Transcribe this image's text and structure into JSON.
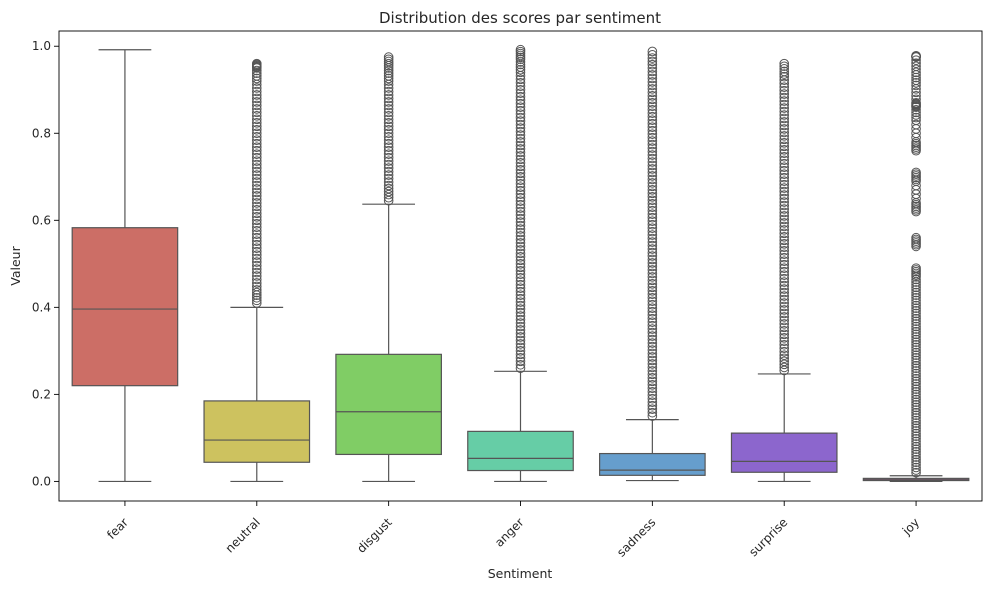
{
  "chart_data": {
    "type": "box",
    "title": "Distribution des scores par sentiment",
    "xlabel": "Sentiment",
    "ylabel": "Valeur",
    "ylim": [
      -0.045,
      1.035
    ],
    "yticks": [
      "0.0",
      "0.2",
      "0.4",
      "0.6",
      "0.8",
      "1.0"
    ],
    "ytick_values": [
      0.0,
      0.2,
      0.4,
      0.6,
      0.8,
      1.0
    ],
    "grid": false,
    "legend": "none",
    "categories": [
      "fear",
      "neutral",
      "disgust",
      "anger",
      "sadness",
      "surprise",
      "joy"
    ],
    "boxes": [
      {
        "category": "fear",
        "color": "#cc6e66",
        "whisker_low": 0.0,
        "q1": 0.22,
        "median": 0.396,
        "q3": 0.583,
        "whisker_high": 0.992,
        "outliers": []
      },
      {
        "category": "neutral",
        "color": "#cdc25f",
        "whisker_low": 0.0,
        "q1": 0.044,
        "median": 0.095,
        "q3": 0.185,
        "whisker_high": 0.4,
        "outliers": [
          0.41,
          0.44,
          0.48,
          0.52,
          0.56,
          0.6,
          0.64,
          0.68,
          0.72,
          0.76,
          0.8,
          0.84,
          0.88,
          0.92,
          0.95,
          0.96
        ]
      },
      {
        "category": "disgust",
        "color": "#80cd65",
        "whisker_low": 0.0,
        "q1": 0.062,
        "median": 0.16,
        "q3": 0.292,
        "whisker_high": 0.637,
        "outliers": [
          0.645,
          0.68,
          0.72,
          0.76,
          0.8,
          0.84,
          0.88,
          0.92,
          0.95,
          0.975
        ]
      },
      {
        "category": "anger",
        "color": "#66cda6",
        "whisker_low": 0.0,
        "q1": 0.025,
        "median": 0.053,
        "q3": 0.115,
        "whisker_high": 0.253,
        "outliers": [
          0.26,
          0.3,
          0.34,
          0.38,
          0.42,
          0.46,
          0.5,
          0.54,
          0.58,
          0.62,
          0.66,
          0.7,
          0.74,
          0.78,
          0.82,
          0.86,
          0.9,
          0.94,
          0.97,
          0.992
        ]
      },
      {
        "category": "sadness",
        "color": "#669ecd",
        "whisker_low": 0.002,
        "q1": 0.014,
        "median": 0.026,
        "q3": 0.064,
        "whisker_high": 0.142,
        "outliers": [
          0.15,
          0.19,
          0.23,
          0.27,
          0.31,
          0.35,
          0.39,
          0.43,
          0.47,
          0.51,
          0.55,
          0.59,
          0.63,
          0.67,
          0.71,
          0.75,
          0.79,
          0.83,
          0.87,
          0.91,
          0.95,
          0.988
        ]
      },
      {
        "category": "surprise",
        "color": "#8c66cd",
        "whisker_low": 0.0,
        "q1": 0.021,
        "median": 0.046,
        "q3": 0.111,
        "whisker_high": 0.247,
        "outliers": [
          0.255,
          0.29,
          0.33,
          0.37,
          0.41,
          0.45,
          0.49,
          0.53,
          0.57,
          0.61,
          0.65,
          0.69,
          0.73,
          0.77,
          0.81,
          0.85,
          0.89,
          0.93,
          0.96
        ]
      },
      {
        "category": "joy",
        "color": "#cd66a8",
        "whisker_low": 0.0,
        "q1": 0.002,
        "median": 0.004,
        "q3": 0.007,
        "whisker_high": 0.013,
        "outliers": [
          0.02,
          0.05,
          0.08,
          0.11,
          0.14,
          0.17,
          0.2,
          0.23,
          0.26,
          0.29,
          0.32,
          0.35,
          0.38,
          0.41,
          0.44,
          0.47,
          0.49,
          0.54,
          0.56,
          0.62,
          0.64,
          0.69,
          0.71,
          0.76,
          0.78,
          0.83,
          0.86,
          0.87,
          0.91,
          0.94,
          0.975,
          0.978
        ]
      }
    ]
  }
}
